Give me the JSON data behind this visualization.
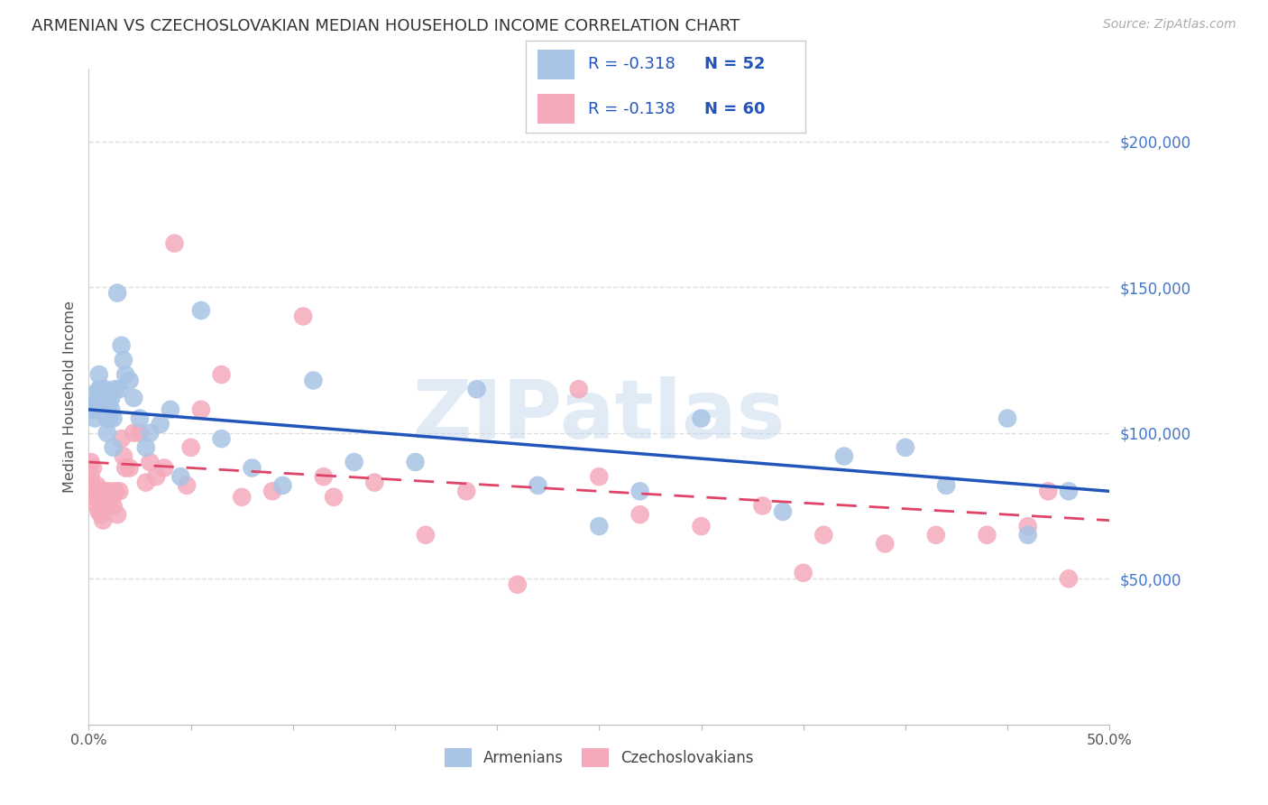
{
  "title": "ARMENIAN VS CZECHOSLOVAKIAN MEDIAN HOUSEHOLD INCOME CORRELATION CHART",
  "source": "Source: ZipAtlas.com",
  "ylabel": "Median Household Income",
  "watermark": "ZIPatlas",
  "armenian_color": "#a8c4e5",
  "armenian_line_color": "#2255bb",
  "czech_color": "#f4aabb",
  "czech_line_color": "#dd4466",
  "legend_armenian_r": "-0.318",
  "legend_armenian_n": "52",
  "legend_czech_r": "-0.138",
  "legend_czech_n": "60",
  "ytick_labels": [
    "$50,000",
    "$100,000",
    "$150,000",
    "$200,000"
  ],
  "ytick_values": [
    50000,
    100000,
    150000,
    200000
  ],
  "ylim": [
    0,
    225000
  ],
  "xlim": [
    0.0,
    0.5
  ],
  "xtick_vals": [
    0.0,
    0.05,
    0.1,
    0.15,
    0.2,
    0.25,
    0.3,
    0.35,
    0.4,
    0.45,
    0.5
  ],
  "arm_line_x0": 0.0,
  "arm_line_y0": 108000,
  "arm_line_x1": 0.5,
  "arm_line_y1": 80000,
  "czech_line_x0": 0.0,
  "czech_line_y0": 90000,
  "czech_line_x1": 0.5,
  "czech_line_y1": 70000,
  "armenian_x": [
    0.001,
    0.002,
    0.003,
    0.003,
    0.004,
    0.005,
    0.005,
    0.006,
    0.007,
    0.008,
    0.008,
    0.009,
    0.009,
    0.01,
    0.01,
    0.011,
    0.011,
    0.012,
    0.012,
    0.013,
    0.014,
    0.015,
    0.016,
    0.017,
    0.018,
    0.02,
    0.022,
    0.025,
    0.028,
    0.03,
    0.035,
    0.04,
    0.045,
    0.055,
    0.065,
    0.08,
    0.095,
    0.11,
    0.13,
    0.16,
    0.19,
    0.22,
    0.25,
    0.27,
    0.3,
    0.34,
    0.37,
    0.4,
    0.42,
    0.45,
    0.46,
    0.48
  ],
  "armenian_y": [
    113000,
    108000,
    110000,
    105000,
    108000,
    120000,
    115000,
    115000,
    110000,
    110000,
    115000,
    105000,
    100000,
    105000,
    110000,
    108000,
    112000,
    95000,
    105000,
    115000,
    148000,
    115000,
    130000,
    125000,
    120000,
    118000,
    112000,
    105000,
    95000,
    100000,
    103000,
    108000,
    85000,
    142000,
    98000,
    88000,
    82000,
    118000,
    90000,
    90000,
    115000,
    82000,
    68000,
    80000,
    105000,
    73000,
    92000,
    95000,
    82000,
    105000,
    65000,
    80000
  ],
  "czech_x": [
    0.001,
    0.001,
    0.002,
    0.002,
    0.003,
    0.003,
    0.004,
    0.004,
    0.005,
    0.005,
    0.006,
    0.006,
    0.007,
    0.007,
    0.008,
    0.008,
    0.009,
    0.01,
    0.011,
    0.012,
    0.013,
    0.014,
    0.015,
    0.016,
    0.017,
    0.018,
    0.02,
    0.022,
    0.025,
    0.028,
    0.03,
    0.033,
    0.037,
    0.042,
    0.048,
    0.055,
    0.065,
    0.075,
    0.09,
    0.105,
    0.12,
    0.14,
    0.165,
    0.185,
    0.21,
    0.24,
    0.27,
    0.3,
    0.33,
    0.36,
    0.39,
    0.415,
    0.44,
    0.46,
    0.47,
    0.48,
    0.05,
    0.115,
    0.25,
    0.35
  ],
  "czech_y": [
    90000,
    85000,
    88000,
    82000,
    80000,
    78000,
    82000,
    75000,
    80000,
    73000,
    78000,
    72000,
    78000,
    70000,
    80000,
    75000,
    78000,
    80000,
    78000,
    75000,
    80000,
    72000,
    80000,
    98000,
    92000,
    88000,
    88000,
    100000,
    100000,
    83000,
    90000,
    85000,
    88000,
    165000,
    82000,
    108000,
    120000,
    78000,
    80000,
    140000,
    78000,
    83000,
    65000,
    80000,
    48000,
    115000,
    72000,
    68000,
    75000,
    65000,
    62000,
    65000,
    65000,
    68000,
    80000,
    50000,
    95000,
    85000,
    85000,
    52000
  ]
}
